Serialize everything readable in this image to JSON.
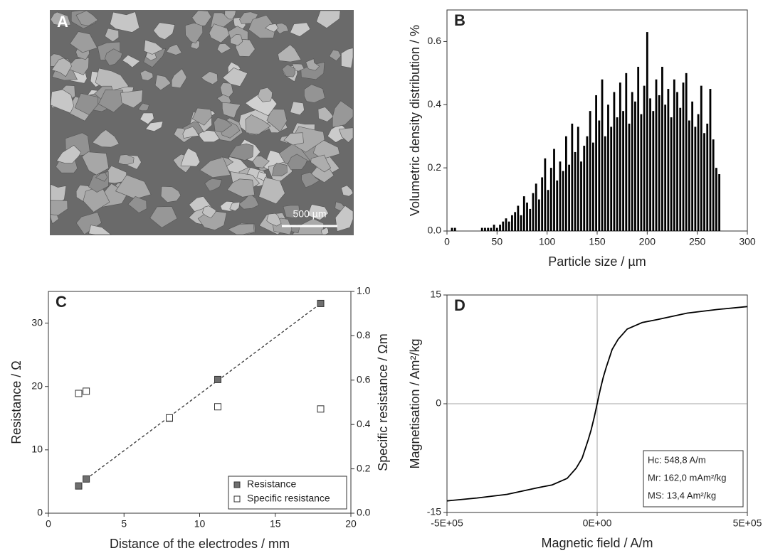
{
  "image_panel": {
    "panel_label": "A",
    "scale_bar": "500 µm"
  },
  "chart_data": [
    {
      "type": "bar",
      "panel_label": "B",
      "xlabel": "Particle size  /  µm",
      "ylabel": "Volumetric density distribution  / %",
      "color": "#000000",
      "x": [
        5,
        8,
        11,
        14,
        17,
        20,
        23,
        26,
        29,
        32,
        35,
        38,
        41,
        44,
        47,
        50,
        53,
        56,
        59,
        62,
        65,
        68,
        71,
        74,
        77,
        80,
        83,
        86,
        89,
        92,
        95,
        98,
        101,
        104,
        107,
        110,
        113,
        116,
        119,
        122,
        125,
        128,
        131,
        134,
        137,
        140,
        143,
        146,
        149,
        152,
        155,
        158,
        161,
        164,
        167,
        170,
        173,
        176,
        179,
        182,
        185,
        188,
        191,
        194,
        197,
        200,
        203,
        206,
        209,
        212,
        215,
        218,
        221,
        224,
        227,
        230,
        233,
        236,
        239,
        242,
        245,
        248,
        251,
        254,
        257,
        260,
        263,
        266,
        269,
        272
      ],
      "values": [
        0.01,
        0.01,
        0,
        0,
        0,
        0,
        0,
        0,
        0,
        0,
        0.01,
        0.01,
        0.01,
        0.01,
        0.02,
        0.01,
        0.02,
        0.03,
        0.04,
        0.03,
        0.05,
        0.06,
        0.08,
        0.05,
        0.11,
        0.09,
        0.07,
        0.12,
        0.15,
        0.1,
        0.17,
        0.23,
        0.13,
        0.2,
        0.26,
        0.16,
        0.22,
        0.19,
        0.3,
        0.21,
        0.34,
        0.25,
        0.33,
        0.22,
        0.27,
        0.3,
        0.38,
        0.28,
        0.43,
        0.35,
        0.48,
        0.3,
        0.4,
        0.33,
        0.44,
        0.36,
        0.47,
        0.38,
        0.5,
        0.34,
        0.44,
        0.41,
        0.52,
        0.37,
        0.46,
        0.63,
        0.42,
        0.38,
        0.48,
        0.43,
        0.52,
        0.4,
        0.45,
        0.36,
        0.48,
        0.44,
        0.39,
        0.47,
        0.5,
        0.35,
        0.41,
        0.33,
        0.37,
        0.46,
        0.31,
        0.34,
        0.45,
        0.29,
        0.2,
        0.18
      ],
      "xlim": [
        0,
        300
      ],
      "xticks": [
        0,
        50,
        100,
        150,
        200,
        250,
        300
      ],
      "ylim": [
        0,
        0.7
      ],
      "yticks": [
        {
          "value": 0,
          "label": "0.0"
        },
        0.2,
        0.4,
        0.6
      ]
    },
    {
      "type": "scatter",
      "panel_label": "C",
      "xlabel": "Distance of the electrodes / mm",
      "ylabel": "Resistance / Ω",
      "y2label": "Specific resistance / Ωm",
      "series": [
        {
          "name": "Resistance",
          "color": "#6f6f6f",
          "x": [
            2,
            2.5,
            8,
            11.2,
            18
          ],
          "values": [
            4.3,
            5.4,
            15.0,
            21.1,
            33.1
          ]
        },
        {
          "name": "Specific resistance",
          "color": "#ffffff",
          "axis": "y2",
          "x": [
            2,
            2.5,
            8,
            11.2,
            18
          ],
          "values": [
            0.54,
            0.55,
            0.43,
            0.48,
            0.47
          ]
        }
      ],
      "trendline": {
        "x": [
          2.5,
          18
        ],
        "values": [
          5.4,
          33.1
        ]
      },
      "xlim": [
        0,
        20
      ],
      "xticks": [
        0,
        5,
        10,
        15,
        20
      ],
      "ylim": [
        0,
        35
      ],
      "yticks": [
        0,
        10,
        20,
        30
      ],
      "y2lim": [
        0,
        1
      ],
      "y2ticks": [
        {
          "value": 0,
          "label": "0.0"
        },
        0.2,
        0.4,
        0.6,
        0.8,
        {
          "value": 1,
          "label": "1.0"
        }
      ],
      "legend": "bottom-right"
    },
    {
      "type": "line",
      "panel_label": "D",
      "xlabel": "Magnetic field / A/m",
      "ylabel": "Magnetisation / Am²/kg",
      "x": [
        -500000,
        -400000,
        -300000,
        -200000,
        -150000,
        -100000,
        -70000,
        -50000,
        -30000,
        -20000,
        -10000,
        0,
        10000,
        20000,
        30000,
        50000,
        70000,
        100000,
        150000,
        200000,
        300000,
        400000,
        500000
      ],
      "series": [
        {
          "color": "#000000",
          "values": [
            -13.4,
            -13.0,
            -12.5,
            -11.6,
            -11.2,
            -10.3,
            -8.9,
            -7.5,
            -5.0,
            -3.6,
            -1.9,
            0,
            1.9,
            3.6,
            5.0,
            7.5,
            8.9,
            10.3,
            11.2,
            11.6,
            12.5,
            13.0,
            13.4
          ]
        }
      ],
      "xlim": [
        -500000,
        500000
      ],
      "xticks": [
        {
          "value": -500000,
          "label": "-5E+05"
        },
        {
          "value": 0,
          "label": "0E+00"
        },
        {
          "value": 500000,
          "label": "5E+05"
        }
      ],
      "ylim": [
        -15,
        15
      ],
      "yticks": [
        -15,
        0,
        15
      ],
      "zero_lines": true,
      "annotations": [
        "Hc: 548,8 A/m",
        "Mr: 162,0 mAm²/kg",
        "MS:  13,4 Am²/kg"
      ]
    }
  ]
}
